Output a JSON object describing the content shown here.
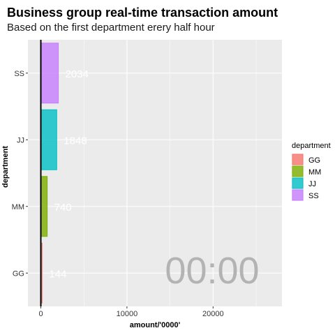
{
  "chart_data": {
    "type": "bar",
    "orientation": "horizontal",
    "title": "Business group real-time transaction amount",
    "subtitle": "Based on the first department erery half hour",
    "xlabel": "amount/'0000'",
    "ylabel": "department",
    "categories": [
      "GG",
      "MM",
      "JJ",
      "SS"
    ],
    "values": [
      144,
      740,
      1848,
      2034
    ],
    "value_labels": [
      "144",
      "740",
      "1848",
      "2034"
    ],
    "colors": [
      "#f8766d",
      "#7cae00",
      "#00bfc4",
      "#c77cff"
    ],
    "xlim": [
      -1500,
      28000
    ],
    "xticks": [
      0,
      10000,
      20000
    ],
    "xtick_labels": [
      "0",
      "10000",
      "20000"
    ],
    "grid": true,
    "legend": {
      "title": "department",
      "position": "right",
      "entries": [
        "GG",
        "MM",
        "JJ",
        "SS"
      ]
    },
    "annotation": "00:00"
  }
}
